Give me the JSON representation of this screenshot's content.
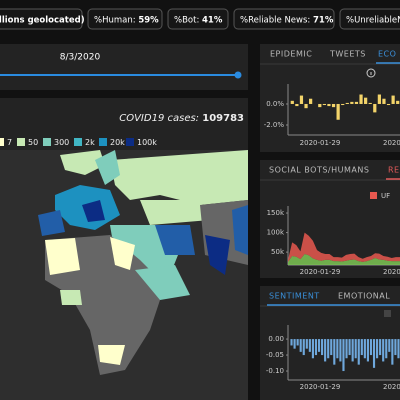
{
  "header": {
    "items": [
      {
        "label": "illions geolocated)"
      },
      {
        "label": "%Human:",
        "value": "59%"
      },
      {
        "label": "%Bot:",
        "value": "41%"
      },
      {
        "label": "%Reliable News:",
        "value": "71%"
      },
      {
        "label": "%UnreliableNe"
      }
    ]
  },
  "slider": {
    "date": "8/3/2020"
  },
  "map": {
    "title": "COVID19 cases:",
    "total": 109783,
    "legend": [
      {
        "label": "7",
        "color": "#ffffcc"
      },
      {
        "label": "50",
        "color": "#c7e9b4"
      },
      {
        "label": "300",
        "color": "#7fcdbb"
      },
      {
        "label": "2k",
        "color": "#41b6c4"
      },
      {
        "label": "20k",
        "color": "#1d91c0"
      },
      {
        "label": "100k",
        "color": "#0c2c84"
      }
    ]
  },
  "panels": [
    {
      "tabs": [
        "EPIDEMIC",
        "TWEETS",
        "ECO"
      ],
      "active": 2,
      "active_color": "#3a8fd9",
      "chart": {
        "type": "bar",
        "color": "#f3d46a",
        "values": [
          0.3,
          -0.2,
          0.8,
          -0.4,
          0.5,
          0,
          -0.3,
          -0.1,
          -0.2,
          -0.3,
          -1.5,
          -0.1,
          0.1,
          0.2,
          0.2,
          0.9,
          0.6,
          0.1,
          -0.8,
          0.9,
          0.5,
          -0.1,
          0.8,
          0.3
        ],
        "ylim": [
          -2.95,
          1.9
        ],
        "yticks": [
          {
            "value": 0,
            "label": "0.0%"
          },
          {
            "value": -2,
            "label": "-2.0%"
          }
        ],
        "x_labels": [
          "2020-01-29",
          "2020-0"
        ]
      }
    },
    {
      "tabs": [
        "SOCIAL BOTS/HUMANS",
        "REL"
      ],
      "active": 1,
      "active_color": "#e05a5a",
      "chart": {
        "type": "stacked-area",
        "series": [
          {
            "color": "#7cc653",
            "values": [
              25000,
              40000,
              38000,
              32000,
              45000,
              42000,
              34000,
              30000,
              28000,
              30000,
              30000,
              27000,
              27000,
              26000,
              28000,
              30000,
              31000,
              27000,
              25000,
              27000,
              30000,
              35000,
              31000,
              30000,
              28000,
              27000,
              27000,
              27000
            ]
          },
          {
            "name": "UF",
            "color": "#e8584f",
            "values": [
              5000,
              35000,
              30000,
              20000,
              55000,
              50000,
              45000,
              25000,
              20000,
              15000,
              15000,
              10000,
              10000,
              10000,
              15000,
              15000,
              15000,
              10000,
              8000,
              10000,
              10000,
              12000,
              15000,
              10000,
              10000,
              8000,
              10000,
              10000
            ]
          }
        ],
        "ylim": [
          17000,
          168000
        ],
        "yticks": [
          {
            "value": 150000,
            "label": "150k"
          },
          {
            "value": 100000,
            "label": "100k"
          },
          {
            "value": 50000,
            "label": "50k"
          }
        ],
        "x_labels": [
          "2020-01-29",
          "2020-0"
        ]
      }
    },
    {
      "tabs": [
        "SENTIMENT",
        "EMOTIONAL"
      ],
      "active": 0,
      "active_color": "#3a8fd9",
      "chart": {
        "type": "bar",
        "color": "#6fa8dc",
        "values": [
          -0.02,
          -0.03,
          -0.02,
          -0.04,
          -0.05,
          -0.03,
          -0.04,
          -0.06,
          -0.05,
          -0.04,
          -0.05,
          -0.07,
          -0.06,
          -0.05,
          -0.08,
          -0.06,
          -0.07,
          -0.1,
          -0.06,
          -0.05,
          -0.07,
          -0.06,
          -0.08,
          -0.05,
          -0.06,
          -0.07,
          -0.05,
          -0.09,
          -0.06,
          -0.05,
          -0.07,
          -0.06,
          -0.04,
          -0.08,
          -0.05,
          -0.06
        ],
        "ylim": [
          -0.128,
          0.044
        ],
        "yticks": [
          {
            "value": 0,
            "label": "0.00"
          },
          {
            "value": -0.05,
            "label": "-0.05"
          },
          {
            "value": -0.1,
            "label": "-0.10"
          }
        ],
        "x_labels": [
          "2020-01-29",
          "2020-0"
        ]
      }
    }
  ]
}
